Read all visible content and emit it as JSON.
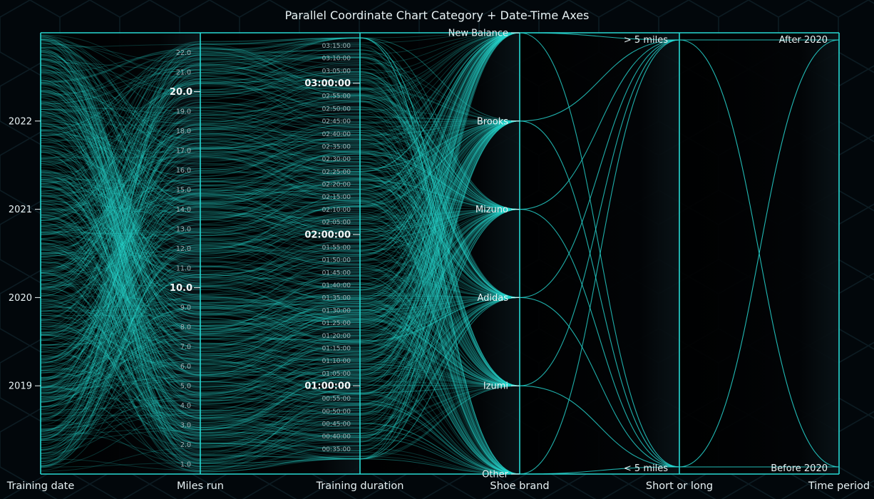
{
  "chart_data": {
    "type": "parallel",
    "title": "Parallel Coordinate Chart Category + Date-Time Axes",
    "series_color": "#27d9d3",
    "axes": [
      {
        "name": "Training date",
        "kind": "time",
        "ticks": [
          "2019",
          "2020",
          "2021",
          "2022"
        ],
        "range": [
          2018.0,
          2023.0
        ]
      },
      {
        "name": "Miles run",
        "kind": "numeric",
        "major_ticks": [
          "10.0",
          "20.0"
        ],
        "minor_ticks": [
          "1.0",
          "2.0",
          "3.0",
          "4.0",
          "5.0",
          "6.0",
          "7.0",
          "8.0",
          "9.0",
          "11.0",
          "12.0",
          "13.0",
          "14.0",
          "15.0",
          "16.0",
          "17.0",
          "18.0",
          "19.0",
          "21.0",
          "22.0"
        ],
        "range": [
          0.5,
          23
        ]
      },
      {
        "name": "Training duration",
        "kind": "time",
        "major_ticks": [
          "01:00:00",
          "02:00:00",
          "03:00:00"
        ],
        "minor_ticks": [
          "00:35:00",
          "00:40:00",
          "00:45:00",
          "00:50:00",
          "00:55:00",
          "01:05:00",
          "01:10:00",
          "01:15:00",
          "01:20:00",
          "01:25:00",
          "01:30:00",
          "01:35:00",
          "01:40:00",
          "01:45:00",
          "01:50:00",
          "01:55:00",
          "02:05:00",
          "02:10:00",
          "02:15:00",
          "02:20:00",
          "02:25:00",
          "02:30:00",
          "02:35:00",
          "02:40:00",
          "02:45:00",
          "02:50:00",
          "02:55:00",
          "03:05:00",
          "03:10:00",
          "03:15:00"
        ]
      },
      {
        "name": "Shoe brand",
        "kind": "category",
        "categories": [
          "New Balance",
          "Brooks",
          "Mizuno",
          "Adidas",
          "Izumi",
          "Other"
        ]
      },
      {
        "name": "Short or long",
        "kind": "category",
        "categories": [
          "> 5 miles",
          "< 5 miles"
        ]
      },
      {
        "name": "Time period",
        "kind": "category",
        "categories": [
          "After 2020",
          "Before 2020"
        ]
      }
    ]
  }
}
